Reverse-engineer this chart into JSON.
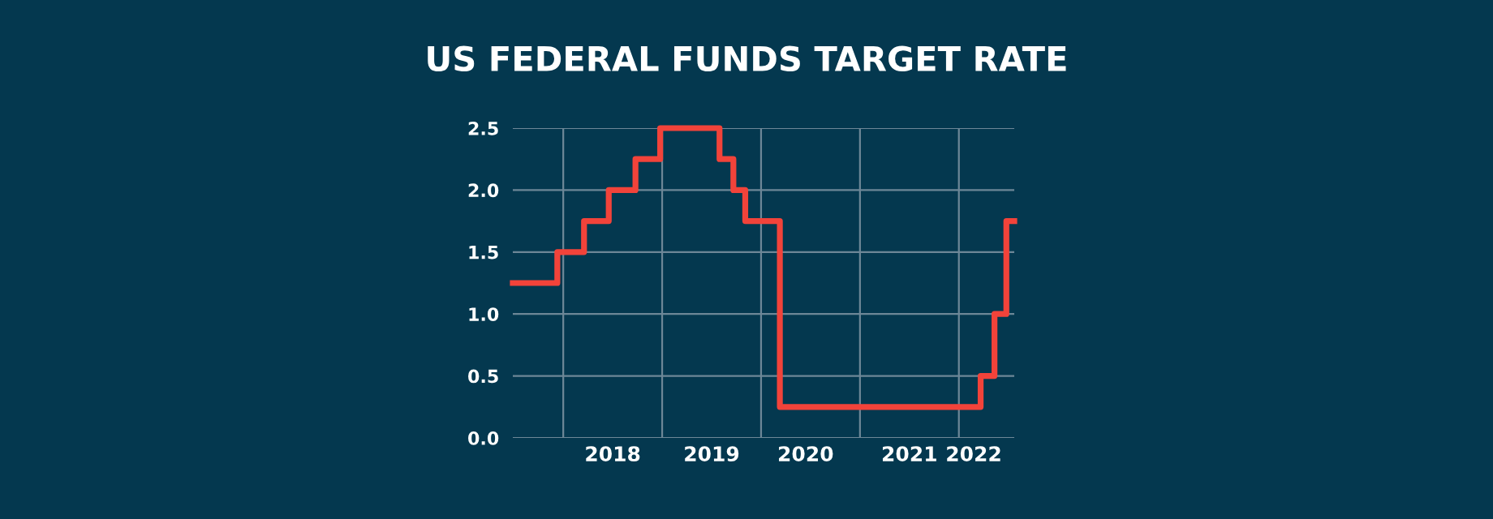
{
  "chart_data": {
    "type": "step",
    "title": "US FEDERAL FUNDS TARGET RATE",
    "x": [
      2017.49,
      2017.94,
      2018.21,
      2018.46,
      2018.73,
      2018.98,
      2019.58,
      2019.72,
      2019.84,
      2020.19,
      2022.22,
      2022.36,
      2022.48,
      2022.56
    ],
    "series": [
      {
        "color": "#f2433a",
        "values": [
          1.25,
          1.5,
          1.75,
          2.0,
          2.25,
          2.5,
          2.25,
          2.0,
          1.75,
          0.25,
          0.5,
          1.0,
          1.75,
          1.75
        ]
      }
    ],
    "xlim": [
      2017.49,
      2022.56
    ],
    "ylim": [
      0,
      2.5
    ],
    "xticks": [
      {
        "value": 2018,
        "label": null
      },
      {
        "value": 2019,
        "label": null
      },
      {
        "value": 2020,
        "label": null
      },
      {
        "value": 2021,
        "label": null
      },
      {
        "value": 2022,
        "label": null
      },
      {
        "value": 2018.5,
        "label": "2018"
      },
      {
        "value": 2019.5,
        "label": "2019"
      },
      {
        "value": 2020.45,
        "label": "2020"
      },
      {
        "value": 2021.5,
        "label": "2021"
      },
      {
        "value": 2022.15,
        "label": "2022"
      }
    ],
    "yticks": [
      {
        "value": 0,
        "label": "0.0"
      },
      {
        "value": 0.5,
        "label": "0.5"
      },
      {
        "value": 1,
        "label": "1.0"
      },
      {
        "value": 1.5,
        "label": "1.5"
      },
      {
        "value": 2,
        "label": "2.0"
      },
      {
        "value": 2.5,
        "label": "2.5"
      }
    ],
    "grid": true,
    "line_style": "solid",
    "marker": "none"
  }
}
